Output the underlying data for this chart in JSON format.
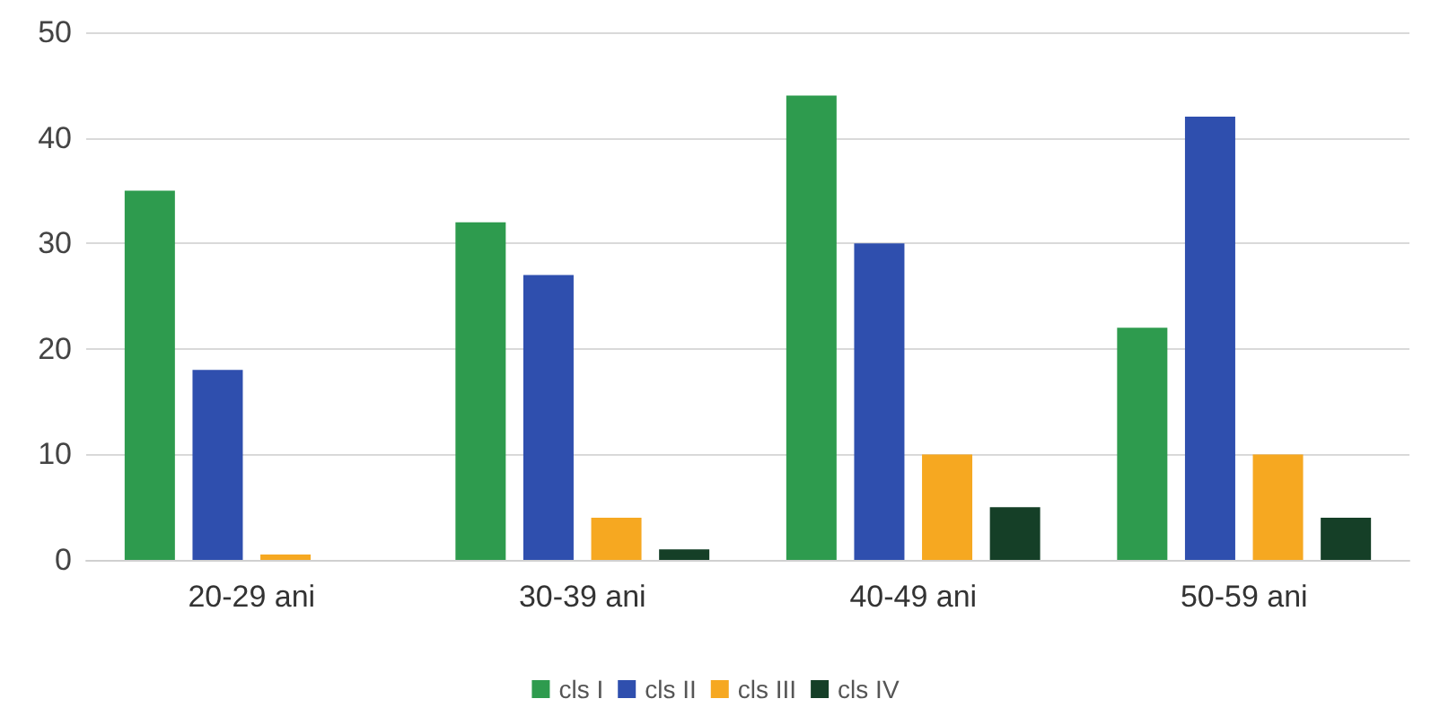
{
  "chart_data": {
    "type": "bar",
    "categories": [
      "20-29 ani",
      "30-39 ani",
      "40-49 ani",
      "50-59 ani"
    ],
    "series": [
      {
        "name": "cls I",
        "color": "#2e9b4e",
        "values": [
          35,
          32,
          44,
          22
        ]
      },
      {
        "name": "cls II",
        "color": "#2f4fae",
        "values": [
          18,
          27,
          30,
          42
        ]
      },
      {
        "name": "cls III",
        "color": "#f6a821",
        "values": [
          0.5,
          4,
          10,
          10
        ]
      },
      {
        "name": "cls IV",
        "color": "#153f27",
        "values": [
          0,
          1,
          5,
          4
        ]
      }
    ],
    "ylim": [
      0,
      50
    ],
    "yticks": [
      0,
      10,
      20,
      30,
      40,
      50
    ],
    "grid": "y",
    "legend": "bottom"
  }
}
